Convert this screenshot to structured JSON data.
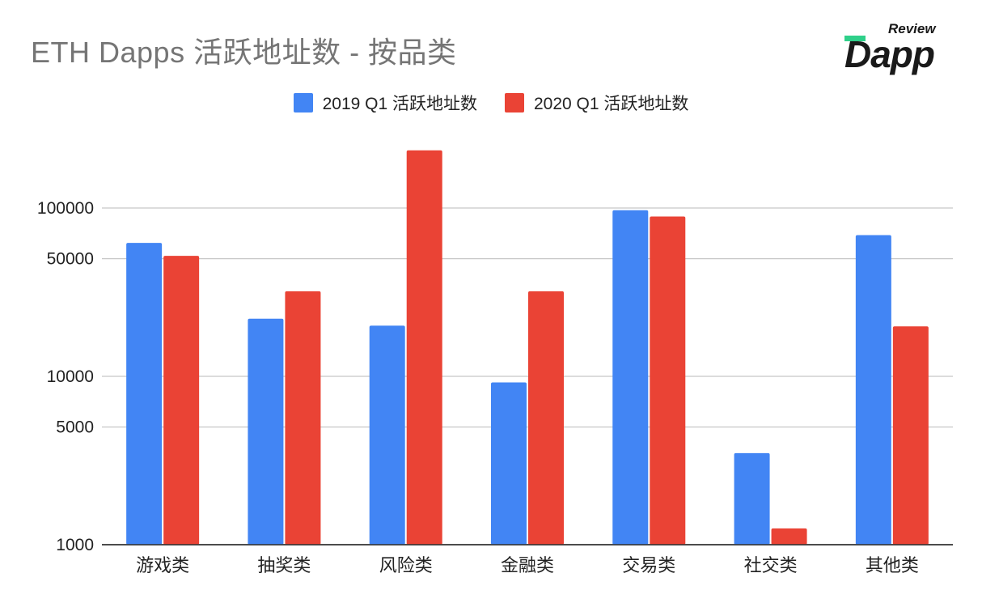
{
  "title": "ETH Dapps 活跃地址数 - 按品类",
  "logo": {
    "top": "Review",
    "word": "Dapp"
  },
  "chart_data": {
    "type": "bar",
    "title": "ETH Dapps 活跃地址数 - 按品类",
    "xlabel": "",
    "ylabel": "",
    "yscale": "log",
    "ylim": [
      1000,
      250000
    ],
    "yticks": [
      1000,
      5000,
      10000,
      50000,
      100000
    ],
    "grid": true,
    "legend": "top",
    "categories": [
      "游戏类",
      "抽奖类",
      "风险类",
      "金融类",
      "交易类",
      "社交类",
      "其他类"
    ],
    "series": [
      {
        "name": "2019 Q1 活跃地址数",
        "color": "#4285f4",
        "values": [
          62000,
          22000,
          20000,
          9200,
          97000,
          3500,
          69000
        ]
      },
      {
        "name": "2020 Q1 活跃地址数",
        "color": "#ea4335",
        "values": [
          52000,
          32000,
          220000,
          32000,
          89000,
          1250,
          19800
        ]
      }
    ]
  }
}
